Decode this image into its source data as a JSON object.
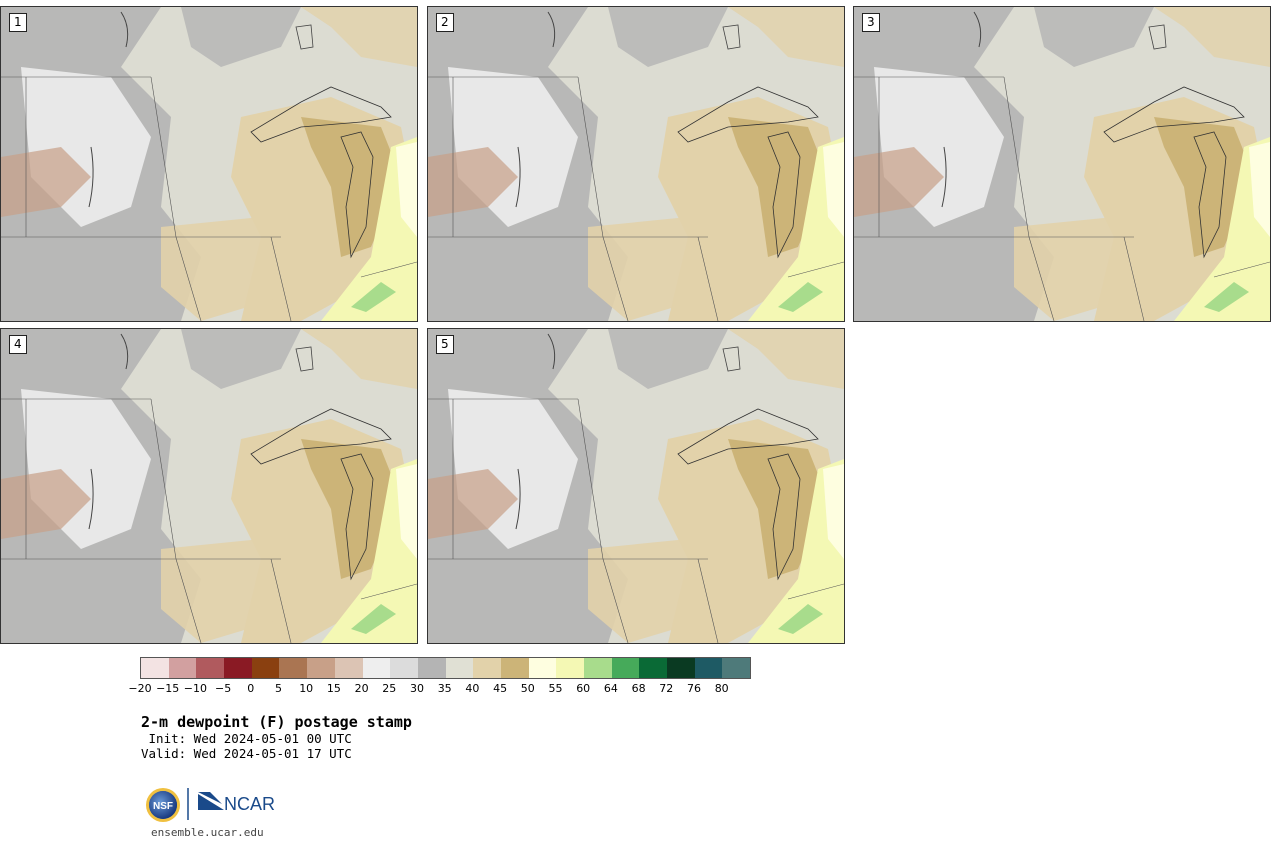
{
  "panels": [
    {
      "label": "1"
    },
    {
      "label": "2"
    },
    {
      "label": "3"
    },
    {
      "label": "4"
    },
    {
      "label": "5"
    }
  ],
  "colorbar": {
    "colors": [
      "#f3e3e3",
      "#d2a0a0",
      "#b05a5e",
      "#8a1a24",
      "#8a4010",
      "#aa7552",
      "#c8a088",
      "#dcc4b4",
      "#eeeeee",
      "#dcdcdc",
      "#b4b4b4",
      "#e0e0d4",
      "#e2d2aa",
      "#ccb478",
      "#fefee0",
      "#f4f8b4",
      "#a8dc8c",
      "#46aa5a",
      "#0a6a36",
      "#0a3a22",
      "#1e5a64",
      "#4e7a7a"
    ],
    "ticks": [
      "−20",
      "−15",
      "−10",
      "−5",
      "0",
      "5",
      "10",
      "15",
      "20",
      "25",
      "30",
      "35",
      "40",
      "45",
      "50",
      "55",
      "60",
      "64",
      "68",
      "72",
      "76",
      "80"
    ]
  },
  "title": "2-m dewpoint (F) postage stamp",
  "init": " Init: Wed 2024-05-01 00 UTC",
  "valid": "Valid: Wed 2024-05-01 17 UTC",
  "logos": {
    "nsf": "NSF",
    "ncar": "NCAR"
  },
  "site": "ensemble.ucar.edu",
  "colors": {
    "gray_dark": "#b4b4b4",
    "gray_light": "#e8e8e8",
    "beige": "#e2d2aa",
    "tan": "#ccb478",
    "yellow": "#f4f8b4",
    "pale": "#fefee0",
    "green": "#a8dc8c",
    "brown": "#c8a088"
  }
}
